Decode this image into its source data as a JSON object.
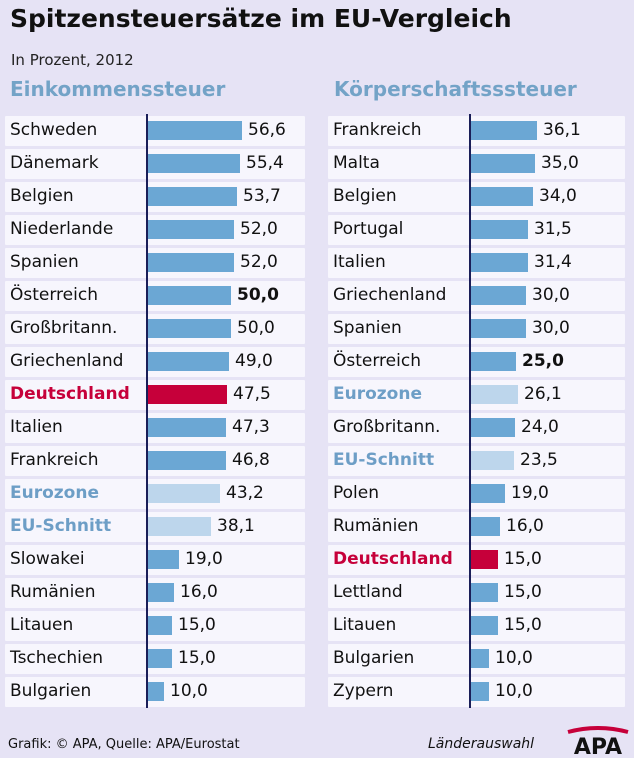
{
  "title": "Spitzensteuersätze im EU-Vergleich",
  "subtitle": "In Prozent, 2012",
  "footer": {
    "source": "Grafik: © APA, Quelle: APA/Eurostat",
    "selection": "Länderauswahl",
    "logo_text": "APA"
  },
  "colors": {
    "bar": "#6ba7d4",
    "bar_aggregate": "#bdd6ec",
    "bar_germany": "#c6003a",
    "axis": "#1a1e58",
    "panel_title": "#73a3c7"
  },
  "chart_data": [
    {
      "type": "bar",
      "orientation": "horizontal",
      "title": "Einkommenssteuer",
      "categories": [
        "Schweden",
        "Dänemark",
        "Belgien",
        "Niederlande",
        "Spanien",
        "Österreich",
        "Großbritann.",
        "Griechenland",
        "Deutschland",
        "Italien",
        "Frankreich",
        "Eurozone",
        "EU-Schnitt",
        "Slowakei",
        "Rumänien",
        "Litauen",
        "Tschechien",
        "Bulgarien"
      ],
      "values": [
        56.6,
        55.4,
        53.7,
        52.0,
        52.0,
        50.0,
        50.0,
        49.0,
        47.5,
        47.3,
        46.8,
        43.2,
        38.1,
        19.0,
        16.0,
        15.0,
        15.0,
        10.0
      ],
      "labels": [
        "56,6",
        "55,4",
        "53,7",
        "52,0",
        "52,0",
        "50,0",
        "50,0",
        "49,0",
        "47,5",
        "47,3",
        "46,8",
        "43,2",
        "38,1",
        "19,0",
        "16,0",
        "15,0",
        "15,0",
        "10,0"
      ],
      "highlight": [
        "normal",
        "normal",
        "normal",
        "normal",
        "normal",
        "austria",
        "normal",
        "normal",
        "germany",
        "normal",
        "normal",
        "aggregate",
        "aggregate",
        "normal",
        "normal",
        "normal",
        "normal",
        "normal"
      ],
      "xlim": [
        0,
        60
      ]
    },
    {
      "type": "bar",
      "orientation": "horizontal",
      "title": "Körperschaftsssteuer",
      "categories": [
        "Frankreich",
        "Malta",
        "Belgien",
        "Portugal",
        "Italien",
        "Griechenland",
        "Spanien",
        "Österreich",
        "Eurozone",
        "Großbritann.",
        "EU-Schnitt",
        "Polen",
        "Rumänien",
        "Deutschland",
        "Lettland",
        "Litauen",
        "Bulgarien",
        "Zypern"
      ],
      "values": [
        36.1,
        35.0,
        34.0,
        31.5,
        31.4,
        30.0,
        30.0,
        25.0,
        26.1,
        24.0,
        23.5,
        19.0,
        16.0,
        15.0,
        15.0,
        15.0,
        10.0,
        10.0
      ],
      "labels": [
        "36,1",
        "35,0",
        "34,0",
        "31,5",
        "31,4",
        "30,0",
        "30,0",
        "25,0",
        "26,1",
        "24,0",
        "23,5",
        "19,0",
        "16,0",
        "15,0",
        "15,0",
        "15,0",
        "10,0",
        "10,0"
      ],
      "highlight": [
        "normal",
        "normal",
        "normal",
        "normal",
        "normal",
        "normal",
        "normal",
        "austria",
        "aggregate",
        "normal",
        "aggregate",
        "normal",
        "normal",
        "germany",
        "normal",
        "normal",
        "normal",
        "normal"
      ],
      "xlim": [
        0,
        38
      ]
    }
  ]
}
